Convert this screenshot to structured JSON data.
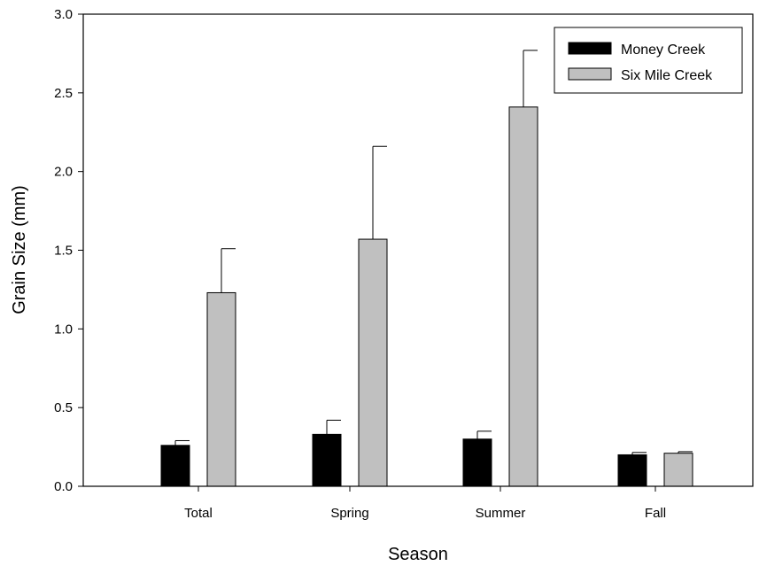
{
  "chart_data": {
    "type": "bar",
    "title": "",
    "xlabel": "Season",
    "ylabel": "Grain Size (mm)",
    "categories": [
      "Total",
      "Spring",
      "Summer",
      "Fall"
    ],
    "ylim": [
      0,
      3.0
    ],
    "yticks": [
      "0.0",
      "0.5",
      "1.0",
      "1.5",
      "2.0",
      "2.5",
      "3.0"
    ],
    "series": [
      {
        "name": "Money Creek",
        "color": "#000000",
        "values": [
          0.26,
          0.33,
          0.3,
          0.2
        ],
        "error": [
          0.03,
          0.09,
          0.05,
          0.015
        ]
      },
      {
        "name": "Six Mile Creek",
        "color": "#c0c0c0",
        "values": [
          1.23,
          1.57,
          2.41,
          0.21
        ],
        "error": [
          0.28,
          0.59,
          0.36,
          0.01
        ]
      }
    ],
    "grid": false,
    "legend_position": "top-right"
  }
}
